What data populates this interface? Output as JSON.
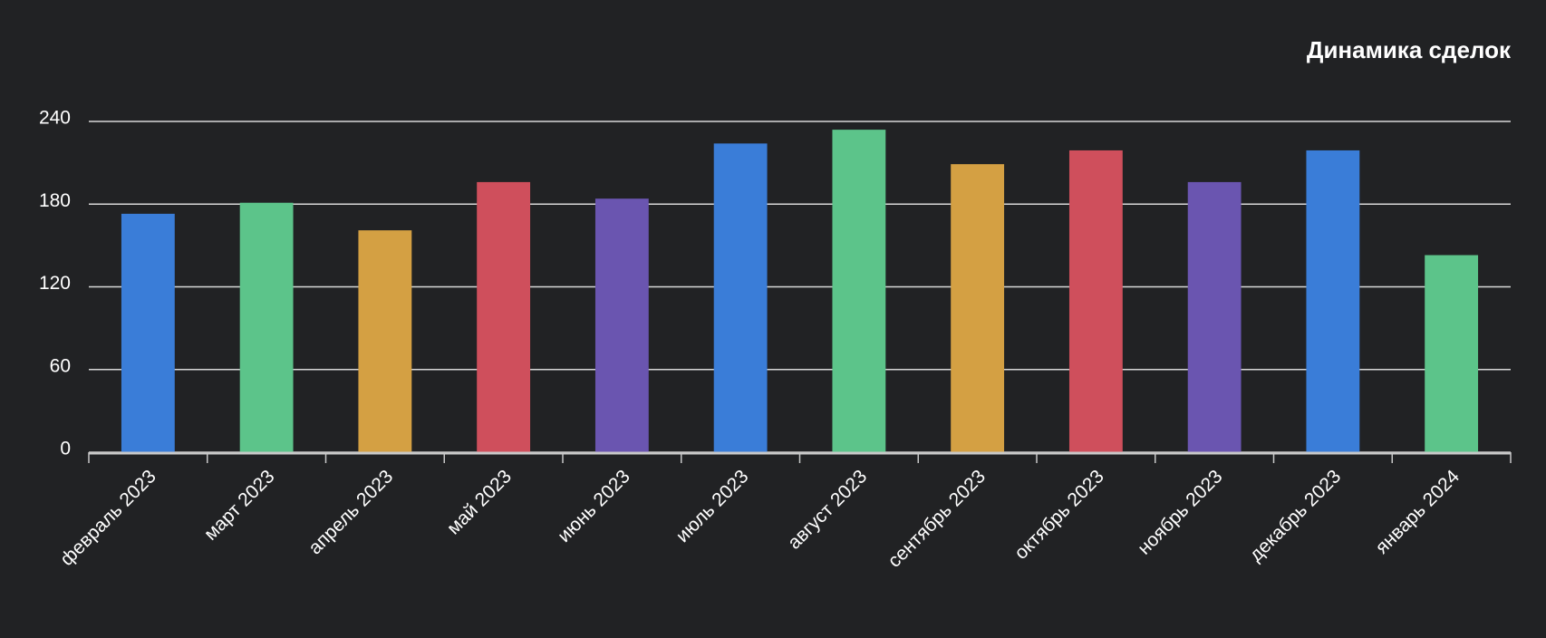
{
  "chart_data": {
    "type": "bar",
    "title": "Динамика сделок",
    "categories": [
      "февраль 2023",
      "март 2023",
      "апрель 2023",
      "май 2023",
      "июнь 2023",
      "июль 2023",
      "август 2023",
      "сентябрь 2023",
      "октябрь 2023",
      "ноябрь 2023",
      "декабрь 2023",
      "январь 2024"
    ],
    "values": [
      173,
      181,
      161,
      196,
      184,
      224,
      234,
      209,
      219,
      196,
      219,
      143
    ],
    "colors": [
      "#3a7dd8",
      "#5cc48a",
      "#d4a043",
      "#cf4f5c",
      "#6a55b0",
      "#3a7dd8",
      "#5cc48a",
      "#d4a043",
      "#cf4f5c",
      "#6a55b0",
      "#3a7dd8",
      "#5cc48a"
    ],
    "ylim": [
      0,
      240
    ],
    "yticks": [
      0,
      60,
      120,
      180,
      240
    ],
    "grid": true
  }
}
